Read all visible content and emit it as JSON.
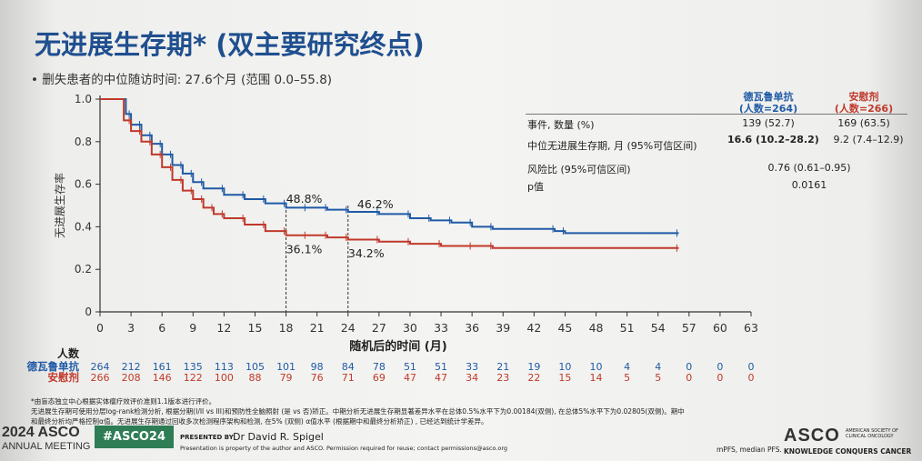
{
  "slide": {
    "title": "无进展生存期* (双主要研究终点)",
    "bullet": "• 删失患者的中位随访时间: 27.6个月 (范围 0.0–55.8)"
  },
  "summary_table": {
    "arm1_name": "德瓦鲁单抗",
    "arm1_n": "(人数=264)",
    "arm2_name": "安慰剂",
    "arm2_n": "(人数=266)",
    "rows": [
      {
        "label": "事件, 数量 (%)",
        "arm1": "139 (52.7)",
        "arm2": "169 (63.5)"
      },
      {
        "label": "中位无进展生存期, 月 (95%可信区间)",
        "arm1": "16.6 (10.2–28.2)",
        "arm2": "9.2 (7.4–12.9)"
      },
      {
        "label": "风险比 (95%可信区间)",
        "value": "0.76 (0.61–0.95)"
      },
      {
        "label": "p值",
        "value": "0.0161"
      }
    ]
  },
  "chart_data": {
    "type": "line",
    "ylabel": "无进展生存率",
    "xlabel": "随机后的时间 (月)",
    "xlim": [
      0,
      63
    ],
    "ylim": [
      0,
      1.0
    ],
    "xticks": [
      0,
      3,
      6,
      9,
      12,
      15,
      18,
      21,
      24,
      27,
      30,
      33,
      36,
      39,
      42,
      45,
      48,
      51,
      54,
      57,
      60,
      63
    ],
    "yticks": [
      "0",
      "0.2",
      "0.4",
      "0.6",
      "0.8",
      "1.0"
    ],
    "series": [
      {
        "name": "德瓦鲁单抗",
        "color": "#1f5aa6",
        "points": [
          [
            0,
            1.0
          ],
          [
            2,
            1.0
          ],
          [
            2.5,
            0.93
          ],
          [
            3,
            0.88
          ],
          [
            4,
            0.83
          ],
          [
            5,
            0.79
          ],
          [
            6,
            0.74
          ],
          [
            7,
            0.69
          ],
          [
            8,
            0.65
          ],
          [
            9,
            0.61
          ],
          [
            10,
            0.58
          ],
          [
            12,
            0.55
          ],
          [
            14,
            0.53
          ],
          [
            16,
            0.51
          ],
          [
            18,
            0.49
          ],
          [
            20,
            0.49
          ],
          [
            22,
            0.48
          ],
          [
            24,
            0.47
          ],
          [
            27,
            0.46
          ],
          [
            30,
            0.44
          ],
          [
            32,
            0.43
          ],
          [
            34,
            0.42
          ],
          [
            36,
            0.4
          ],
          [
            38,
            0.39
          ],
          [
            44,
            0.38
          ],
          [
            45,
            0.37
          ],
          [
            56,
            0.37
          ]
        ]
      },
      {
        "name": "安慰剂",
        "color": "#c0392b",
        "points": [
          [
            0,
            1.0
          ],
          [
            1.8,
            1.0
          ],
          [
            2.3,
            0.9
          ],
          [
            3,
            0.85
          ],
          [
            4,
            0.8
          ],
          [
            5,
            0.74
          ],
          [
            6,
            0.68
          ],
          [
            7,
            0.62
          ],
          [
            8,
            0.57
          ],
          [
            9,
            0.53
          ],
          [
            10,
            0.49
          ],
          [
            11,
            0.46
          ],
          [
            12,
            0.44
          ],
          [
            14,
            0.41
          ],
          [
            16,
            0.38
          ],
          [
            18,
            0.36
          ],
          [
            20,
            0.36
          ],
          [
            22,
            0.35
          ],
          [
            24,
            0.34
          ],
          [
            27,
            0.33
          ],
          [
            30,
            0.32
          ],
          [
            33,
            0.31
          ],
          [
            36,
            0.31
          ],
          [
            38,
            0.3
          ],
          [
            56,
            0.3
          ]
        ]
      }
    ],
    "annotations": [
      {
        "text": "48.8%",
        "x": 18,
        "y": 0.488
      },
      {
        "text": "46.2%",
        "x": 24,
        "y": 0.462
      },
      {
        "text": "36.1%",
        "x": 18,
        "y": 0.361
      },
      {
        "text": "34.2%",
        "x": 24,
        "y": 0.342
      }
    ],
    "risk_table": {
      "header": "人数",
      "rows": [
        {
          "label": "德瓦鲁单抗",
          "color": "#1f5aa6",
          "values": [
            "264",
            "212",
            "161",
            "135",
            "113",
            "105",
            "101",
            "98",
            "84",
            "78",
            "51",
            "51",
            "33",
            "21",
            "19",
            "10",
            "10",
            "4",
            "4",
            "0",
            "0",
            "0"
          ]
        },
        {
          "label": "安慰剂",
          "color": "#c0392b",
          "values": [
            "266",
            "208",
            "146",
            "122",
            "100",
            "88",
            "79",
            "76",
            "71",
            "69",
            "47",
            "47",
            "34",
            "23",
            "22",
            "15",
            "14",
            "5",
            "5",
            "0",
            "0",
            "0"
          ]
        }
      ]
    }
  },
  "footnotes": [
    "*由盲态独立中心根据实体瘤疗效评价准则1.1版本进行评价。",
    "无进展生存期可使用分层log-rank检测分析, 根据分期(I/II vs III)和预防性全脑照射 (是 vs 否)矫正。中期分析无进展生存期显著差异水平在总体0.5%水平下为0.00184(双侧), 在总体5%水平下为0.02805(双侧)。期中",
    "和最终分析均严格控制α值。无进展生存期通过回收多次检测程序架构和检测, 在5% (双侧) α值水平 (根据期中和最终分析矫正) , 已经达到统计学差异。"
  ],
  "footer": {
    "meeting_year": "2024 ASCO",
    "meeting_sub": "ANNUAL MEETING",
    "hashtag": "#ASCO24",
    "presented_by_label": "PRESENTED BY:",
    "presenter": "Dr David R. Spigel",
    "permission": "Presentation is property of the author and ASCO. Permission required for reuse; contact permissions@asco.org",
    "abbrev": "mPFS, median PFS.",
    "asco_logo": "ASCO",
    "asco_small": "AMERICAN SOCIETY OF CLINICAL ONCOLOGY",
    "tagline": "KNOWLEDGE CONQUERS CANCER"
  }
}
